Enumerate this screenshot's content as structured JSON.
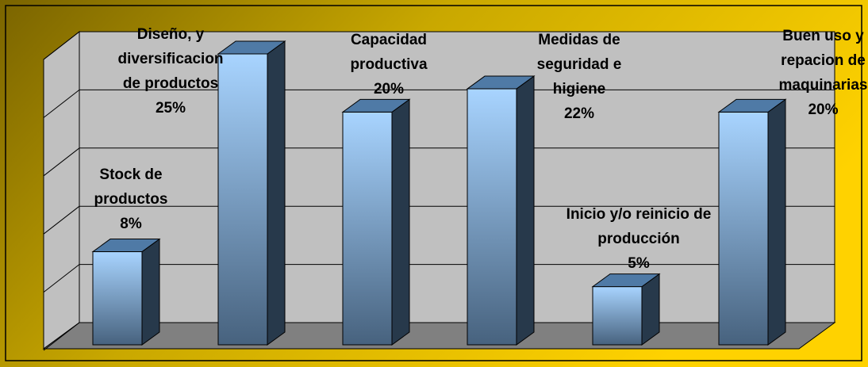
{
  "chart_data": {
    "type": "bar3d",
    "categories": [
      "Stock de productos",
      "Diseño, y diversificacion de productos",
      "Capacidad productiva",
      "Medidas de seguridad e higiene",
      "Inicio y/o reinicio de producción",
      "Buen uso y repacion de maquinarias"
    ],
    "values": [
      8,
      25,
      20,
      22,
      5,
      20
    ],
    "value_labels": [
      "8%",
      "25%",
      "20%",
      "22%",
      "5%",
      "20%"
    ],
    "color": "#9fcfff",
    "ylim": [
      0,
      25
    ],
    "yticks": [
      0,
      5,
      10,
      15,
      20,
      25
    ],
    "grid": true
  }
}
